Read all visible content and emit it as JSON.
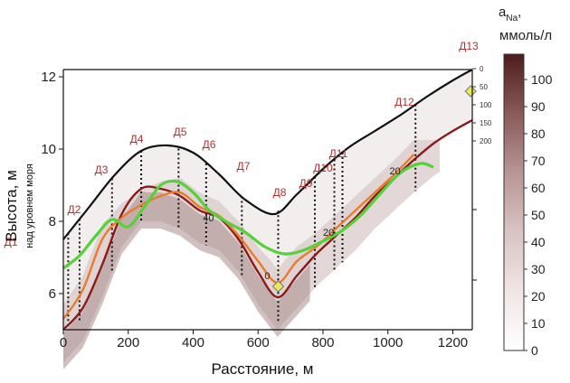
{
  "chart_data": {
    "type": "line",
    "xlabel": "Расстояние, м",
    "ylabel": "Высота, м",
    "ylabel_sub": "над уровнем моря",
    "xlim": [
      0,
      1260
    ],
    "ylim": [
      5,
      12.2
    ],
    "x_ticks": [
      "0",
      "200",
      "400",
      "600",
      "800",
      "1000",
      "1200"
    ],
    "y_ticks": [
      "6",
      "8",
      "10",
      "12"
    ],
    "colorbar": {
      "title_main": "a",
      "title_sub": "Na",
      "title_suffix": ",",
      "unit": "ммоль/л",
      "ticks": [
        "0",
        "10",
        "20",
        "30",
        "40",
        "50",
        "60",
        "70",
        "80",
        "90",
        "100"
      ]
    },
    "depth_scale": {
      "ticks": [
        "0",
        "50",
        "100",
        "150",
        "200"
      ]
    },
    "surface": {
      "color": "#111111",
      "x": [
        0,
        80,
        160,
        240,
        320,
        400,
        480,
        560,
        650,
        720,
        800,
        880,
        960,
        1040,
        1120,
        1200,
        1260
      ],
      "y": [
        7.5,
        8.4,
        9.3,
        9.95,
        10.1,
        9.9,
        9.3,
        8.6,
        8.2,
        8.75,
        9.45,
        10.05,
        10.5,
        10.95,
        11.45,
        11.9,
        12.2
      ]
    },
    "series": [
      {
        "color": "#8b1a1a",
        "x": [
          0,
          60,
          120,
          180,
          240,
          300,
          360,
          420,
          480,
          540,
          600,
          660,
          720,
          780,
          840,
          900,
          960,
          1020,
          1080,
          1140,
          1200,
          1260
        ],
        "y": [
          5.0,
          5.6,
          6.8,
          8.2,
          8.9,
          8.9,
          8.7,
          8.3,
          8.1,
          7.5,
          6.6,
          5.9,
          6.5,
          7.1,
          7.6,
          8.1,
          8.7,
          9.2,
          9.7,
          10.15,
          10.5,
          10.8
        ]
      },
      {
        "color": "#e87c2e",
        "x": [
          0,
          60,
          120,
          180,
          240,
          300,
          360,
          420,
          480,
          540,
          600,
          660,
          720,
          780,
          840,
          900,
          960,
          1020,
          1080
        ],
        "y": [
          5.3,
          6.1,
          7.5,
          8.1,
          8.45,
          8.7,
          8.8,
          8.4,
          8.15,
          7.6,
          6.9,
          6.3,
          6.9,
          7.3,
          7.8,
          8.3,
          8.8,
          9.3,
          9.85
        ]
      },
      {
        "color": "#55d13a",
        "x": [
          0,
          50,
          100,
          150,
          200,
          250,
          300,
          350,
          400,
          450,
          500,
          560,
          620,
          680,
          740,
          800,
          860,
          920,
          980,
          1040,
          1100,
          1140
        ],
        "y": [
          6.7,
          7.05,
          7.6,
          8.05,
          7.85,
          8.4,
          9.0,
          9.1,
          8.8,
          8.3,
          8.0,
          7.7,
          7.3,
          7.1,
          7.2,
          7.45,
          7.75,
          8.2,
          8.8,
          9.35,
          9.6,
          9.5
        ]
      }
    ],
    "wells": [
      {
        "label": "Д1",
        "x": 15
      },
      {
        "label": "Д2",
        "x": 50
      },
      {
        "label": "Д3",
        "x": 150
      },
      {
        "label": "Д4",
        "x": 240
      },
      {
        "label": "Д5",
        "x": 355
      },
      {
        "label": "Д6",
        "x": 440
      },
      {
        "label": "Д7",
        "x": 550
      },
      {
        "label": "Д8",
        "x": 662
      },
      {
        "label": "Д9",
        "x": 775
      },
      {
        "label": "Д10",
        "x": 835
      },
      {
        "label": "Д11",
        "x": 860
      },
      {
        "label": "Д12",
        "x": 1085
      },
      {
        "label": "Д13",
        "x": 1255
      }
    ],
    "contour_labels": [
      "40",
      "20",
      "20",
      "0"
    ],
    "markers": [
      {
        "x": 662,
        "y": 6.2,
        "color": "#e8e85a"
      },
      {
        "x": 1255,
        "y": 11.6,
        "color": "#e8e85a"
      }
    ]
  }
}
